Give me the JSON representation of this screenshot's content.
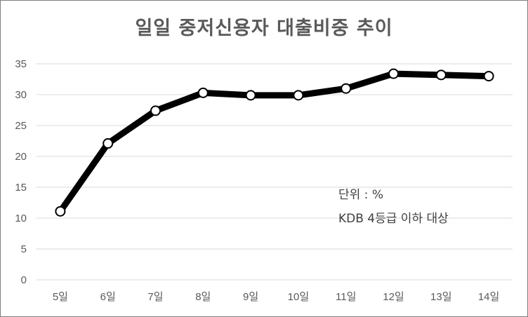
{
  "chart_data": {
    "type": "line",
    "title": "일일 중저신용자 대출비중 추이",
    "categories": [
      "5일",
      "6일",
      "7일",
      "8일",
      "9일",
      "10일",
      "11일",
      "12일",
      "13일",
      "14일"
    ],
    "series": [
      {
        "values": [
          11.1,
          22.1,
          27.4,
          30.3,
          29.9,
          29.9,
          31.0,
          33.4,
          33.2,
          33.0
        ]
      }
    ],
    "xlabel": "",
    "ylabel": "",
    "ylim": [
      0,
      35
    ],
    "yticks": [
      "0",
      "5",
      "10",
      "15",
      "20",
      "25",
      "30",
      "35"
    ],
    "grid": true,
    "legend": "none",
    "annotations": [
      "단위 : %",
      "KDB 4등급 이하 대상"
    ],
    "colors": {
      "line": "#000000",
      "marker_fill": "#ffffff",
      "grid": "#d9d9d9",
      "text": "#595959"
    }
  }
}
